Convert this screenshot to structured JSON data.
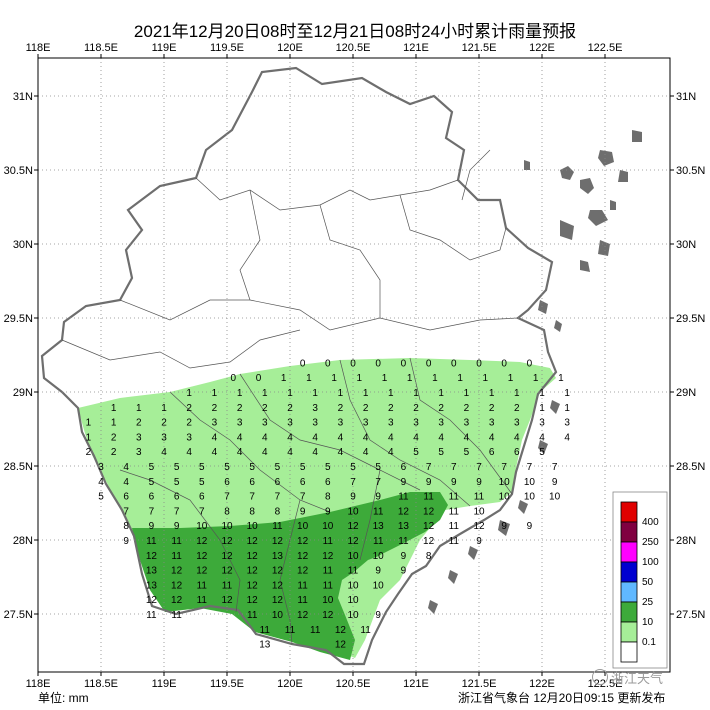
{
  "title": "2021年12月20日08时至12月21日08时24小时累计雨量预报",
  "unit_label": "单位: mm",
  "issuer": "浙江省气象台 12月20日09:15 更新发布",
  "watermark": "浙江天气",
  "axes": {
    "x_labels": [
      "118E",
      "118.5E",
      "119E",
      "119.5E",
      "120E",
      "120.5E",
      "121E",
      "121.5E",
      "122E",
      "122.5E"
    ],
    "y_labels": [
      "31N",
      "30.5N",
      "30N",
      "29.5N",
      "29N",
      "28.5N",
      "28N",
      "27.5N"
    ]
  },
  "legend": [
    {
      "label": "400",
      "color": "#e00000"
    },
    {
      "label": "250",
      "color": "#800040"
    },
    {
      "label": "100",
      "color": "#ff00ff"
    },
    {
      "label": "50",
      "color": "#0000d0"
    },
    {
      "label": "25",
      "color": "#60b8ff"
    },
    {
      "label": "10",
      "color": "#3daa3a"
    },
    {
      "label": "0.1",
      "color": "#a6ee98"
    },
    {
      "label": "",
      "color": "#ffffff"
    }
  ],
  "colors": {
    "light_rain": "#a6ee98",
    "moderate_rain": "#3daa3a",
    "coast": "#6e6e6e"
  },
  "station_rows": [
    {
      "lat": 29.2,
      "lon0": 120.1,
      "values": [
        "0",
        "0",
        "0",
        "0",
        "0",
        "0",
        "0",
        "0",
        "0",
        "0"
      ]
    },
    {
      "lat": 29.1,
      "lon0": 119.55,
      "values": [
        "0",
        "0",
        "1",
        "1",
        "1",
        "1",
        "1",
        "1",
        "1",
        "1",
        "1",
        "1",
        "1",
        "1"
      ]
    },
    {
      "lat": 29.0,
      "lon0": 119.2,
      "values": [
        "1",
        "1",
        "1",
        "1",
        "1",
        "1",
        "1",
        "1",
        "1",
        "1",
        "1",
        "1",
        "1",
        "1",
        "1",
        "1"
      ]
    },
    {
      "lat": 28.9,
      "lon0": 118.6,
      "values": [
        "1",
        "1",
        "1",
        "2",
        "2",
        "2",
        "2",
        "2",
        "3",
        "2",
        "2",
        "2",
        "2",
        "2",
        "2",
        "2",
        "2",
        "1",
        "1"
      ]
    },
    {
      "lat": 28.8,
      "lon0": 118.4,
      "values": [
        "1",
        "1",
        "2",
        "2",
        "2",
        "3",
        "3",
        "3",
        "3",
        "3",
        "3",
        "3",
        "3",
        "3",
        "3",
        "3",
        "3",
        "3",
        "3",
        "3"
      ]
    },
    {
      "lat": 28.7,
      "lon0": 118.4,
      "values": [
        "1",
        "2",
        "3",
        "3",
        "3",
        "4",
        "4",
        "4",
        "4",
        "4",
        "4",
        "4",
        "4",
        "4",
        "4",
        "4",
        "4",
        "4",
        "4",
        "4"
      ]
    },
    {
      "lat": 28.6,
      "lon0": 118.4,
      "values": [
        "2",
        "2",
        "3",
        "4",
        "4",
        "4",
        "4",
        "4",
        "4",
        "4",
        "4",
        "4",
        "4",
        "5",
        "5",
        "5",
        "6",
        "6",
        "5"
      ]
    },
    {
      "lat": 28.5,
      "lon0": 118.5,
      "values": [
        "3",
        "4",
        "5",
        "5",
        "5",
        "5",
        "5",
        "5",
        "5",
        "5",
        "5",
        "5",
        "6",
        "7",
        "7",
        "7",
        "7",
        "7",
        "7"
      ]
    },
    {
      "lat": 28.4,
      "lon0": 118.5,
      "values": [
        "4",
        "4",
        "5",
        "5",
        "5",
        "6",
        "6",
        "6",
        "6",
        "6",
        "7",
        "7",
        "9",
        "9",
        "9",
        "9",
        "10",
        "10",
        "9"
      ]
    },
    {
      "lat": 28.3,
      "lon0": 118.5,
      "values": [
        "5",
        "6",
        "6",
        "6",
        "6",
        "7",
        "7",
        "7",
        "7",
        "8",
        "9",
        "9",
        "11",
        "11",
        "11",
        "11",
        "10",
        "10",
        "10"
      ]
    },
    {
      "lat": 28.2,
      "lon0": 118.7,
      "values": [
        "7",
        "7",
        "7",
        "7",
        "8",
        "8",
        "8",
        "9",
        "9",
        "10",
        "11",
        "12",
        "12",
        "11",
        "10"
      ]
    },
    {
      "lat": 28.1,
      "lon0": 118.7,
      "values": [
        "8",
        "9",
        "9",
        "10",
        "10",
        "10",
        "11",
        "10",
        "10",
        "12",
        "13",
        "13",
        "12",
        "11",
        "12",
        "9",
        "9"
      ]
    },
    {
      "lat": 28.0,
      "lon0": 118.7,
      "values": [
        "9",
        "11",
        "11",
        "12",
        "12",
        "12",
        "12",
        "12",
        "11",
        "12",
        "11",
        "11",
        "12",
        "11",
        "9"
      ]
    },
    {
      "lat": 27.9,
      "lon0": 118.9,
      "values": [
        "12",
        "11",
        "12",
        "12",
        "12",
        "13",
        "12",
        "12",
        "10",
        "10",
        "9",
        "8"
      ]
    },
    {
      "lat": 27.8,
      "lon0": 118.9,
      "values": [
        "13",
        "12",
        "12",
        "12",
        "12",
        "12",
        "12",
        "11",
        "11",
        "9",
        "9"
      ]
    },
    {
      "lat": 27.7,
      "lon0": 118.9,
      "values": [
        "13",
        "12",
        "11",
        "11",
        "12",
        "12",
        "11",
        "11",
        "10",
        "10"
      ]
    },
    {
      "lat": 27.6,
      "lon0": 118.9,
      "values": [
        "12",
        "12",
        "11",
        "12",
        "12",
        "12",
        "11",
        "10",
        "10"
      ]
    },
    {
      "lat": 27.5,
      "lon0": 118.9,
      "values": [
        "11",
        "11",
        "",
        "",
        "11",
        "10",
        "12",
        "12",
        "10",
        "9"
      ]
    },
    {
      "lat": 27.4,
      "lon0": 119.8,
      "values": [
        "11",
        "11",
        "11",
        "12",
        "11"
      ]
    },
    {
      "lat": 27.3,
      "lon0": 119.8,
      "values": [
        "13",
        "",
        "",
        "12"
      ]
    }
  ]
}
